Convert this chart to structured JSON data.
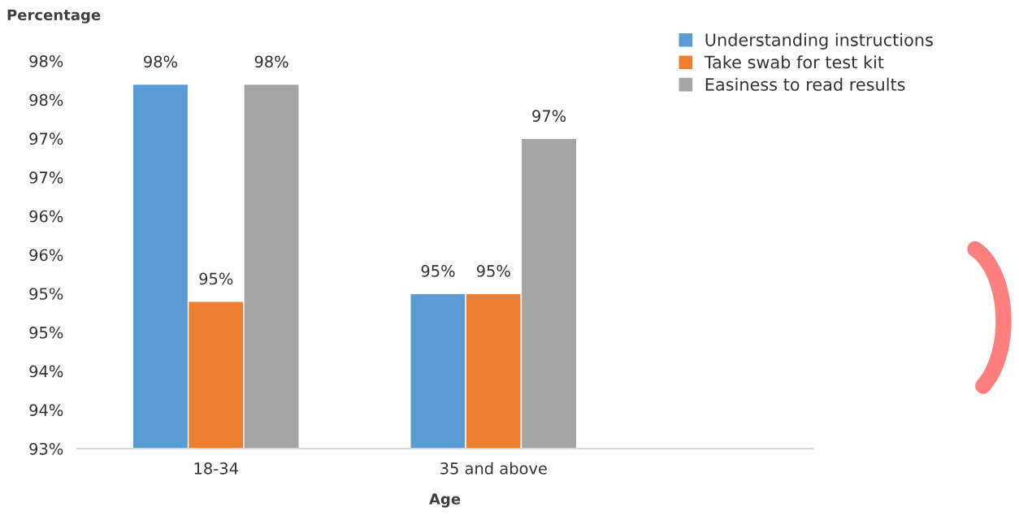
{
  "chart_data": {
    "type": "bar",
    "xlabel": "Age",
    "ylabel": "Percentage",
    "categories": [
      "18-34",
      "35 and above"
    ],
    "series": [
      {
        "name": "Understanding instructions",
        "color": "#5b9bd5",
        "values": [
          97.7,
          95.0
        ],
        "value_labels": [
          "98%",
          "95%"
        ]
      },
      {
        "name": "Take swab for test kit",
        "color": "#ed7d31",
        "values": [
          94.9,
          95.0
        ],
        "value_labels": [
          "95%",
          "95%"
        ]
      },
      {
        "name": "Easiness to read results",
        "color": "#a5a5a5",
        "values": [
          97.7,
          97.0
        ],
        "value_labels": [
          "98%",
          "97%"
        ]
      }
    ],
    "ylim": [
      93,
      98
    ],
    "yticks": [
      {
        "value": 93,
        "label": "93%"
      },
      {
        "value": 93.5,
        "label": "94%"
      },
      {
        "value": 94,
        "label": "94%"
      },
      {
        "value": 94.5,
        "label": "95%"
      },
      {
        "value": 95,
        "label": "95%"
      },
      {
        "value": 95.5,
        "label": "96%"
      },
      {
        "value": 96,
        "label": "96%"
      },
      {
        "value": 96.5,
        "label": "97%"
      },
      {
        "value": 97,
        "label": "97%"
      },
      {
        "value": 97.5,
        "label": "98%"
      },
      {
        "value": 98,
        "label": "98%"
      }
    ],
    "grid": false,
    "legend": "top right"
  }
}
